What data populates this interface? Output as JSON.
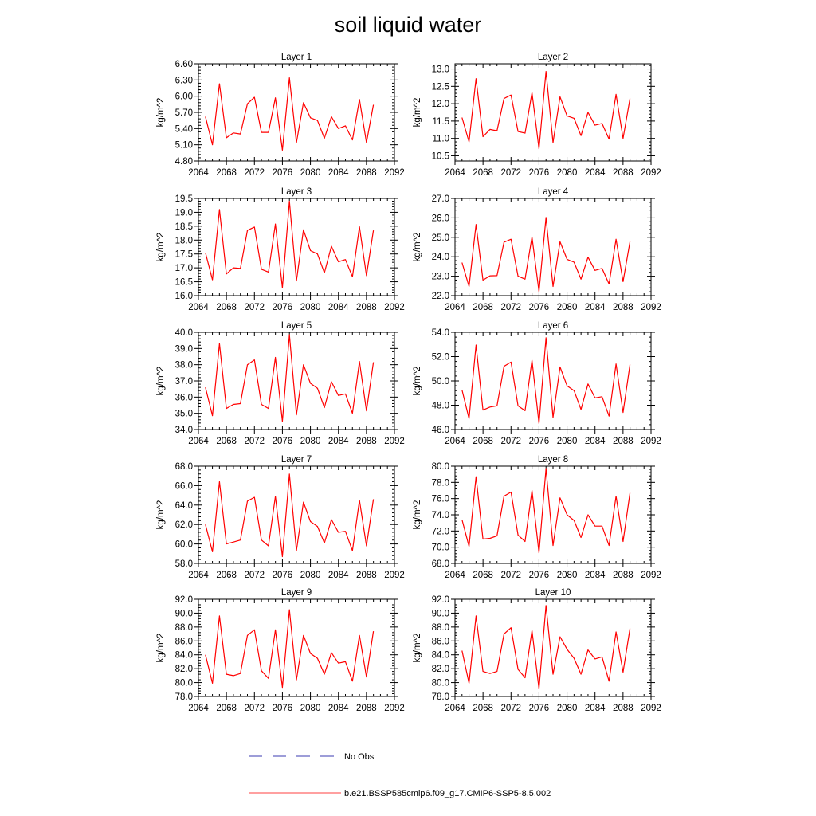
{
  "chart_data": {
    "type": "line",
    "title": "soil liquid water",
    "x": [
      2065,
      2066,
      2067,
      2068,
      2069,
      2070,
      2071,
      2072,
      2073,
      2074,
      2075,
      2076,
      2077,
      2078,
      2079,
      2080,
      2081,
      2082,
      2083,
      2084,
      2085,
      2086,
      2087,
      2088,
      2089
    ],
    "xlim": [
      2064,
      2092
    ],
    "xticks": [
      "2064",
      "2068",
      "2072",
      "2076",
      "2080",
      "2084",
      "2088",
      "2092"
    ],
    "xtick_values": [
      2064,
      2068,
      2072,
      2076,
      2080,
      2084,
      2088,
      2092
    ],
    "grid": false,
    "legend": {
      "placement": "bottom",
      "entries": [
        {
          "label": "No Obs",
          "color": "#3b3bb0",
          "style": "dashed"
        },
        {
          "label": "b.e21.BSSP585cmip6.f09_g17.CMIP6-SSP5-8.5.002",
          "color": "#ff0000",
          "style": "solid"
        }
      ]
    },
    "panels": [
      {
        "title": "Layer 1",
        "ylabel": "kg/m^2",
        "ylim": [
          4.8,
          6.6
        ],
        "yticks": [
          "4.80",
          "5.10",
          "5.40",
          "5.70",
          "6.00",
          "6.30",
          "6.60"
        ],
        "ytick_values": [
          4.8,
          5.1,
          5.4,
          5.7,
          6.0,
          6.3,
          6.6
        ],
        "series": [
          {
            "color": "#ff0000",
            "values": [
              5.62,
              5.1,
              6.23,
              5.23,
              5.32,
              5.3,
              5.86,
              5.98,
              5.33,
              5.33,
              5.97,
              5.0,
              6.34,
              5.14,
              5.88,
              5.6,
              5.55,
              5.22,
              5.62,
              5.4,
              5.45,
              5.19,
              5.94,
              5.14,
              5.84
            ]
          }
        ]
      },
      {
        "title": "Layer 2",
        "ylabel": "kg/m^2",
        "ylim": [
          10.35,
          13.15
        ],
        "yticks": [
          "10.5",
          "11.0",
          "11.5",
          "12.0",
          "12.5",
          "13.0"
        ],
        "ytick_values": [
          10.5,
          11.0,
          11.5,
          12.0,
          12.5,
          13.0
        ],
        "series": [
          {
            "color": "#ff0000",
            "values": [
              11.6,
              10.9,
              12.72,
              11.05,
              11.26,
              11.22,
              12.15,
              12.25,
              11.2,
              11.15,
              12.32,
              10.7,
              12.93,
              10.88,
              12.2,
              11.65,
              11.58,
              11.08,
              11.75,
              11.38,
              11.43,
              10.98,
              12.27,
              11.0,
              12.15
            ]
          }
        ]
      },
      {
        "title": "Layer 3",
        "ylabel": "kg/m^2",
        "ylim": [
          16.0,
          19.5
        ],
        "yticks": [
          "16.0",
          "16.5",
          "17.0",
          "17.5",
          "18.0",
          "18.5",
          "19.0",
          "19.5"
        ],
        "ytick_values": [
          16.0,
          16.5,
          17.0,
          17.5,
          18.0,
          18.5,
          19.0,
          19.5
        ],
        "series": [
          {
            "color": "#ff0000",
            "values": [
              17.55,
              16.57,
              19.1,
              16.78,
              17.0,
              16.98,
              18.35,
              18.47,
              16.95,
              16.85,
              18.58,
              16.28,
              19.4,
              16.53,
              18.37,
              17.62,
              17.5,
              16.82,
              17.78,
              17.22,
              17.3,
              16.68,
              18.48,
              16.72,
              18.35
            ]
          }
        ]
      },
      {
        "title": "Layer 4",
        "ylabel": "kg/m^2",
        "ylim": [
          22.0,
          27.0
        ],
        "yticks": [
          "22.0",
          "23.0",
          "24.0",
          "25.0",
          "26.0",
          "27.0"
        ],
        "ytick_values": [
          22.0,
          23.0,
          24.0,
          25.0,
          26.0,
          27.0
        ],
        "series": [
          {
            "color": "#ff0000",
            "values": [
              23.7,
              22.47,
              25.66,
              22.8,
              23.02,
              23.03,
              24.75,
              24.9,
              23.0,
              22.85,
              25.02,
              22.2,
              26.02,
              22.47,
              24.77,
              23.87,
              23.72,
              22.85,
              23.98,
              23.3,
              23.4,
              22.6,
              24.9,
              22.72,
              24.78
            ]
          }
        ]
      },
      {
        "title": "Layer 5",
        "ylabel": "kg/m^2",
        "ylim": [
          34.0,
          40.0
        ],
        "yticks": [
          "34.0",
          "35.0",
          "36.0",
          "37.0",
          "38.0",
          "39.0",
          "40.0"
        ],
        "ytick_values": [
          34.0,
          35.0,
          36.0,
          37.0,
          38.0,
          39.0,
          40.0
        ],
        "series": [
          {
            "color": "#ff0000",
            "values": [
              36.6,
              34.85,
              39.3,
              35.3,
              35.55,
              35.6,
              38.0,
              38.3,
              35.55,
              35.3,
              38.45,
              34.5,
              39.85,
              34.9,
              38.0,
              36.85,
              36.55,
              35.35,
              36.95,
              36.1,
              36.2,
              35.0,
              38.2,
              35.15,
              38.15
            ]
          }
        ]
      },
      {
        "title": "Layer 6",
        "ylabel": "kg/m^2",
        "ylim": [
          46.0,
          54.0
        ],
        "yticks": [
          "46.0",
          "48.0",
          "50.0",
          "52.0",
          "54.0"
        ],
        "ytick_values": [
          46.0,
          48.0,
          50.0,
          52.0,
          54.0
        ],
        "series": [
          {
            "color": "#ff0000",
            "values": [
              49.25,
              46.9,
              52.95,
              47.6,
              47.85,
              47.95,
              51.2,
              51.55,
              47.95,
              47.55,
              51.7,
              46.5,
              53.55,
              47.0,
              51.15,
              49.6,
              49.2,
              47.65,
              49.75,
              48.6,
              48.7,
              47.1,
              51.4,
              47.4,
              51.35
            ]
          }
        ]
      },
      {
        "title": "Layer 7",
        "ylabel": "kg/m^2",
        "ylim": [
          58.0,
          68.0
        ],
        "yticks": [
          "58.0",
          "60.0",
          "62.0",
          "64.0",
          "66.0",
          "68.0"
        ],
        "ytick_values": [
          58.0,
          60.0,
          62.0,
          64.0,
          66.0,
          68.0
        ],
        "series": [
          {
            "color": "#ff0000",
            "values": [
              62.0,
              59.2,
              66.4,
              60.0,
              60.2,
              60.4,
              64.4,
              64.8,
              60.4,
              59.8,
              64.9,
              58.7,
              67.2,
              59.3,
              64.3,
              62.3,
              61.8,
              60.1,
              62.5,
              61.2,
              61.3,
              59.3,
              64.5,
              59.8,
              64.6
            ]
          }
        ]
      },
      {
        "title": "Layer 8",
        "ylabel": "kg/m^2",
        "ylim": [
          68.0,
          80.0
        ],
        "yticks": [
          "68.0",
          "70.0",
          "72.0",
          "74.0",
          "76.0",
          "78.0",
          "80.0"
        ],
        "ytick_values": [
          68.0,
          70.0,
          72.0,
          74.0,
          76.0,
          78.0,
          80.0
        ],
        "series": [
          {
            "color": "#ff0000",
            "values": [
              73.4,
              70.1,
              78.7,
              71.0,
              71.1,
              71.4,
              76.3,
              76.8,
              71.5,
              70.7,
              77.0,
              69.3,
              79.7,
              70.2,
              76.1,
              74.0,
              73.3,
              71.2,
              74.0,
              72.6,
              72.6,
              70.2,
              76.3,
              70.7,
              76.7
            ]
          }
        ]
      },
      {
        "title": "Layer 9",
        "ylabel": "kg/m^2",
        "ylim": [
          78.0,
          92.0
        ],
        "yticks": [
          "78.0",
          "80.0",
          "82.0",
          "84.0",
          "86.0",
          "88.0",
          "90.0",
          "92.0"
        ],
        "ytick_values": [
          78.0,
          80.0,
          82.0,
          84.0,
          86.0,
          88.0,
          90.0,
          92.0
        ],
        "series": [
          {
            "color": "#ff0000",
            "values": [
              84.0,
              79.9,
              89.6,
              81.2,
              81.0,
              81.3,
              86.8,
              87.6,
              81.7,
              80.6,
              87.6,
              79.3,
              90.5,
              80.4,
              86.8,
              84.2,
              83.5,
              81.2,
              84.3,
              82.8,
              83.0,
              80.2,
              86.8,
              80.8,
              87.4
            ]
          }
        ]
      },
      {
        "title": "Layer 10",
        "ylabel": "kg/m^2",
        "ylim": [
          78.0,
          92.0
        ],
        "yticks": [
          "78.0",
          "80.0",
          "82.0",
          "84.0",
          "86.0",
          "88.0",
          "90.0",
          "92.0"
        ],
        "ytick_values": [
          78.0,
          80.0,
          82.0,
          84.0,
          86.0,
          88.0,
          90.0,
          92.0
        ],
        "series": [
          {
            "color": "#ff0000",
            "values": [
              84.6,
              79.9,
              89.6,
              81.6,
              81.3,
              81.6,
              87.0,
              87.9,
              81.9,
              80.7,
              87.5,
              79.1,
              91.1,
              81.2,
              86.6,
              84.8,
              83.5,
              81.2,
              84.7,
              83.4,
              83.7,
              80.2,
              87.3,
              81.5,
              87.8
            ]
          }
        ]
      }
    ]
  }
}
